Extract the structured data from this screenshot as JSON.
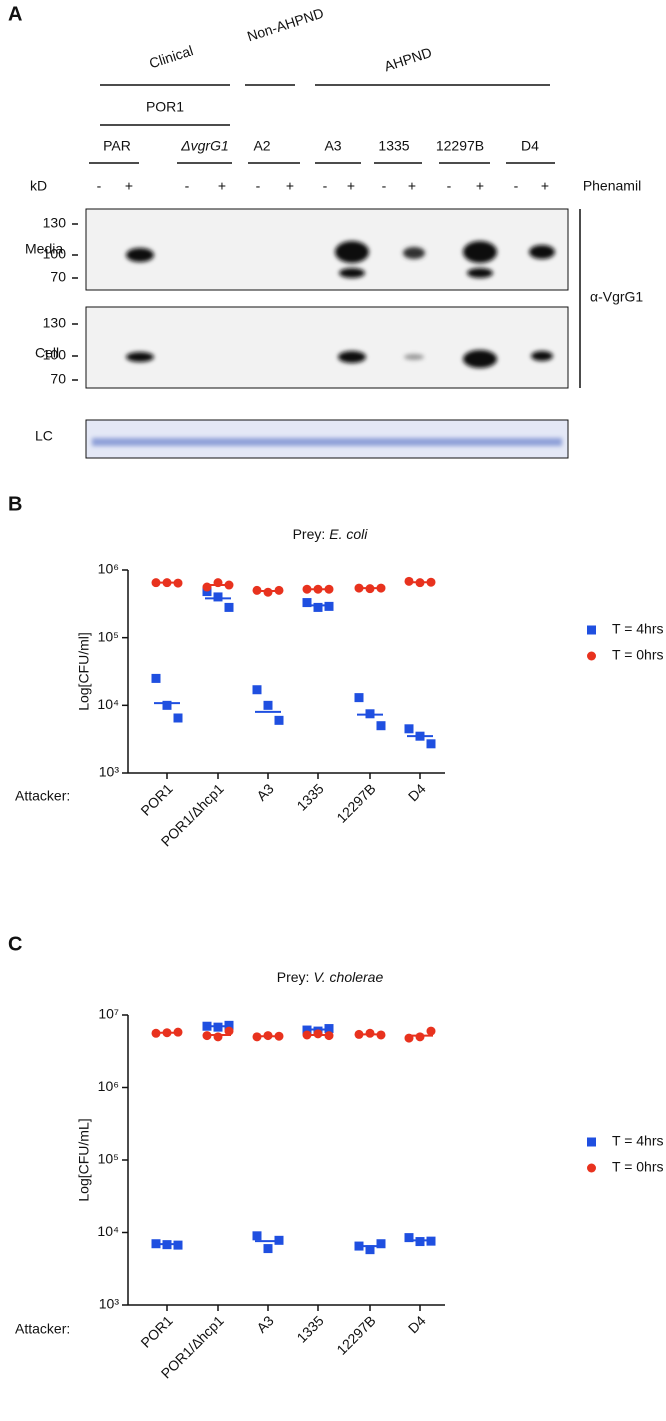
{
  "panel_a": {
    "label": "A",
    "groups": [
      "Clinical",
      "Non-AHPND",
      "AHPND"
    ],
    "subgroup": "POR1",
    "strains": [
      "PAR",
      "ΔvgrG1",
      "A2",
      "A3",
      "1335",
      "12297B",
      "D4"
    ],
    "kd": "kD",
    "signs": [
      "-",
      "+"
    ],
    "treatment": "Phenamil",
    "blots": [
      {
        "label": "Media",
        "markers": [
          "130",
          "100",
          "70"
        ]
      },
      {
        "label": "Cell",
        "markers": [
          "130",
          "100",
          "70"
        ]
      }
    ],
    "antibody": "α-VgrG1",
    "loading": "LC"
  },
  "chart_data": [
    {
      "type": "scatter",
      "panel": "B",
      "title": [
        "Prey:",
        "E. coli"
      ],
      "y_label": "Log[CFU/ml]",
      "x_label": "Attacker:",
      "categories": [
        "POR1",
        "POR1/Δhcp1",
        "A3",
        "1335",
        "12297B",
        "D4"
      ],
      "log_y": true,
      "ylim": [
        1000,
        1000000
      ],
      "yticks": [
        {
          "value": 1000,
          "label": "10³"
        },
        {
          "value": 10000,
          "label": "10⁴"
        },
        {
          "value": 100000,
          "label": "10⁵"
        },
        {
          "value": 1000000,
          "label": "10⁶"
        }
      ],
      "series": [
        {
          "name": "T = 4hrs",
          "color": "#1f4fe0",
          "marker": "square",
          "values": [
            [
              25000,
              10000,
              6500
            ],
            [
              480000,
              400000,
              280000
            ],
            [
              17000,
              10000,
              6000
            ],
            [
              330000,
              280000,
              290000
            ],
            [
              13000,
              7500,
              5000
            ],
            [
              4500,
              3500,
              2700
            ]
          ],
          "means": [
            10800,
            380000,
            8000,
            300000,
            7300,
            3500
          ]
        },
        {
          "name": "T = 0hrs",
          "color": "#e8321e",
          "marker": "circle",
          "values": [
            [
              650000,
              650000,
              640000
            ],
            [
              560000,
              650000,
              600000
            ],
            [
              500000,
              470000,
              500000
            ],
            [
              520000,
              520000,
              520000
            ],
            [
              540000,
              530000,
              540000
            ],
            [
              680000,
              650000,
              660000
            ]
          ],
          "means": [
            650000,
            600000,
            490000,
            520000,
            540000,
            660000
          ]
        }
      ]
    },
    {
      "type": "scatter",
      "panel": "C",
      "title": [
        "Prey:",
        "V. cholerae"
      ],
      "y_label": "Log[CFU/mL]",
      "x_label": "Attacker:",
      "categories": [
        "POR1",
        "POR1/Δhcp1",
        "A3",
        "1335",
        "12297B",
        "D4"
      ],
      "log_y": true,
      "ylim": [
        1000,
        10000000
      ],
      "yticks": [
        {
          "value": 1000,
          "label": "10³"
        },
        {
          "value": 10000,
          "label": "10⁴"
        },
        {
          "value": 100000,
          "label": "10⁵"
        },
        {
          "value": 1000000,
          "label": "10⁶"
        },
        {
          "value": 10000000,
          "label": "10⁷"
        }
      ],
      "series": [
        {
          "name": "T = 4hrs",
          "color": "#1f4fe0",
          "marker": "square",
          "values": [
            [
              7000,
              6800,
              6700
            ],
            [
              7000000,
              6800000,
              7200000
            ],
            [
              9000,
              6000,
              7800
            ],
            [
              6200000,
              6000000,
              6500000
            ],
            [
              6500,
              5800,
              7000
            ],
            [
              8500,
              7500,
              7600
            ]
          ],
          "means": [
            6900,
            7000000,
            7600,
            6300000,
            6500,
            7800
          ]
        },
        {
          "name": "T = 0hrs",
          "color": "#e8321e",
          "marker": "circle",
          "values": [
            [
              5600000,
              5700000,
              5800000
            ],
            [
              5200000,
              5000000,
              6000000
            ],
            [
              5000000,
              5200000,
              5100000
            ],
            [
              5300000,
              5500000,
              5200000
            ],
            [
              5400000,
              5600000,
              5300000
            ],
            [
              4800000,
              5000000,
              6000000
            ]
          ],
          "means": [
            5700000,
            5300000,
            5100000,
            5300000,
            5400000,
            5200000
          ]
        }
      ]
    }
  ]
}
